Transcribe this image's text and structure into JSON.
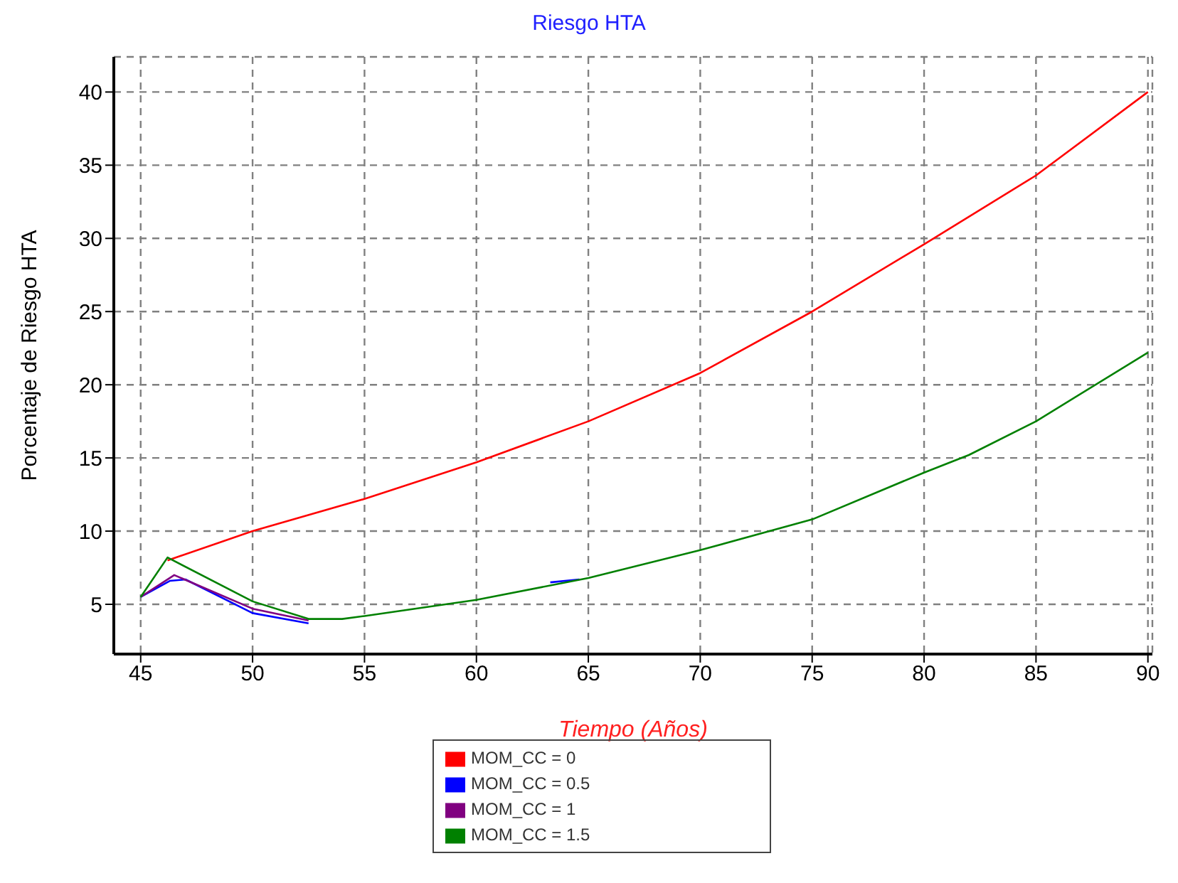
{
  "chart_data": {
    "type": "line",
    "title": "Riesgo HTA",
    "xlabel": "Tiempo (Años)",
    "ylabel": "Porcentaje de Riesgo HTA",
    "xlim": [
      43.8,
      90.2
    ],
    "xticks": [
      45,
      50,
      55,
      60,
      65,
      70,
      75,
      80,
      85,
      90
    ],
    "ylim": [
      1.6,
      42.4
    ],
    "yticks": [
      5,
      10,
      15,
      20,
      25,
      30,
      35,
      40
    ],
    "grid": true,
    "legend": "bottom",
    "line_style": "solid",
    "marker": "none",
    "series": [
      {
        "name": "MOM_CC = 0",
        "color": "#ff0000",
        "x": [
          46.2,
          50,
          55,
          60,
          65,
          70,
          75,
          80,
          85,
          90
        ],
        "values": [
          8.0,
          10.0,
          12.2,
          14.7,
          17.5,
          20.8,
          25.0,
          29.6,
          34.3,
          40.0
        ]
      },
      {
        "name": "MOM_CC = 0.5",
        "color": "#0000ff",
        "x": [
          45,
          46.3,
          47,
          50,
          52.5,
          58,
          63.3,
          64.6
        ],
        "values": [
          5.5,
          6.6,
          6.7,
          4.4,
          3.7,
          null,
          6.5,
          6.7
        ]
      },
      {
        "name": "MOM_CC = 1",
        "color": "#800080",
        "x": [
          45,
          46.5,
          50,
          52.5
        ],
        "values": [
          5.5,
          7.0,
          4.7,
          3.9
        ]
      },
      {
        "name": "MOM_CC = 1.5",
        "color": "#008000",
        "x": [
          45,
          46.2,
          50,
          52.5,
          54,
          55,
          60,
          65,
          70,
          75,
          80,
          82,
          85,
          90
        ],
        "values": [
          5.5,
          8.2,
          5.2,
          4.0,
          4.0,
          4.2,
          5.3,
          6.8,
          8.7,
          10.8,
          14.0,
          15.2,
          17.5,
          22.2
        ]
      }
    ]
  }
}
